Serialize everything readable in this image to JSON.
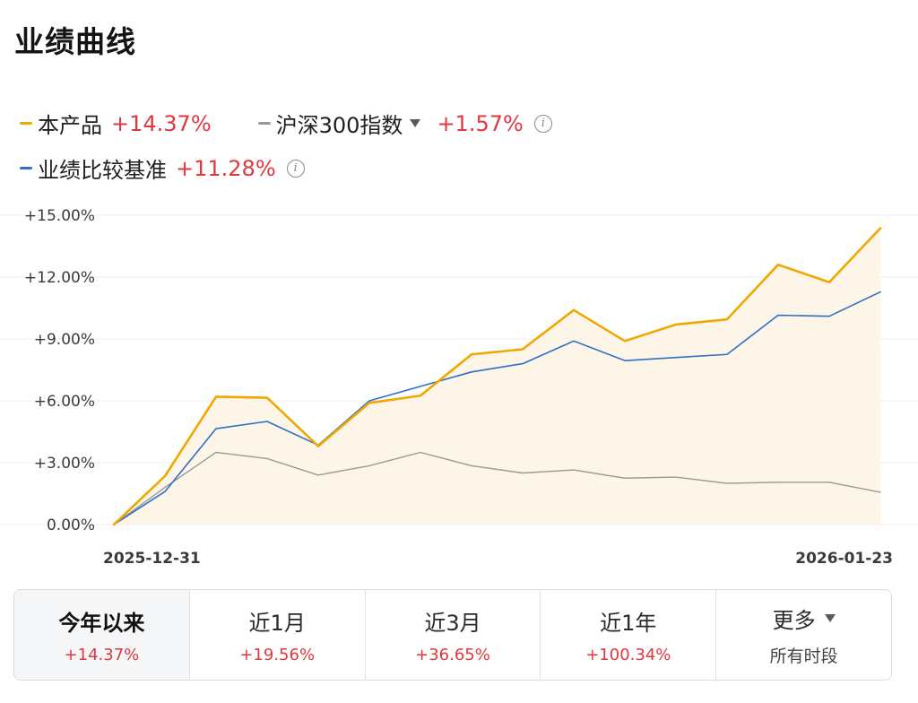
{
  "title": "业绩曲线",
  "legend": [
    {
      "name": "本产品",
      "value": "+14.37%",
      "color": "#f0a800"
    },
    {
      "name": "沪深300指数",
      "value": "+1.57%",
      "color": "#9a9a9a",
      "has_dropdown": true,
      "has_info": true
    },
    {
      "name": "业绩比较基准",
      "value": "+11.28%",
      "color": "#2f6fc4",
      "has_info": true
    }
  ],
  "chart_data": {
    "type": "line",
    "x_start_label": "2025-12-31",
    "x_end_label": "2026-01-23",
    "yticks": [
      "0.00%",
      "+3.00%",
      "+6.00%",
      "+9.00%",
      "+12.00%",
      "+15.00%"
    ],
    "ylim": [
      0,
      15
    ],
    "grid": true,
    "series": [
      {
        "name": "本产品",
        "color": "#f0a800",
        "area": true,
        "values": [
          0,
          2.35,
          6.2,
          6.15,
          3.8,
          5.9,
          6.25,
          8.25,
          8.5,
          10.4,
          8.9,
          9.7,
          9.95,
          12.6,
          11.75,
          14.37
        ]
      },
      {
        "name": "业绩比较基准",
        "color": "#2f6fc4",
        "values": [
          0,
          1.6,
          4.65,
          5.0,
          3.85,
          6.0,
          6.7,
          7.4,
          7.8,
          8.9,
          7.95,
          8.1,
          8.25,
          10.15,
          10.1,
          11.28
        ]
      },
      {
        "name": "沪深300指数",
        "color": "#9a9a9a",
        "values": [
          0,
          1.8,
          3.5,
          3.2,
          2.4,
          2.85,
          3.5,
          2.85,
          2.5,
          2.65,
          2.25,
          2.3,
          2.0,
          2.05,
          2.05,
          1.57
        ]
      }
    ]
  },
  "tabs": [
    {
      "label": "今年以来",
      "value": "+14.37%",
      "active": true
    },
    {
      "label": "近1月",
      "value": "+19.56%"
    },
    {
      "label": "近3月",
      "value": "+36.65%"
    },
    {
      "label": "近1年",
      "value": "+100.34%"
    },
    {
      "label": "更多",
      "sub": "所有时段",
      "has_dropdown": true
    }
  ]
}
